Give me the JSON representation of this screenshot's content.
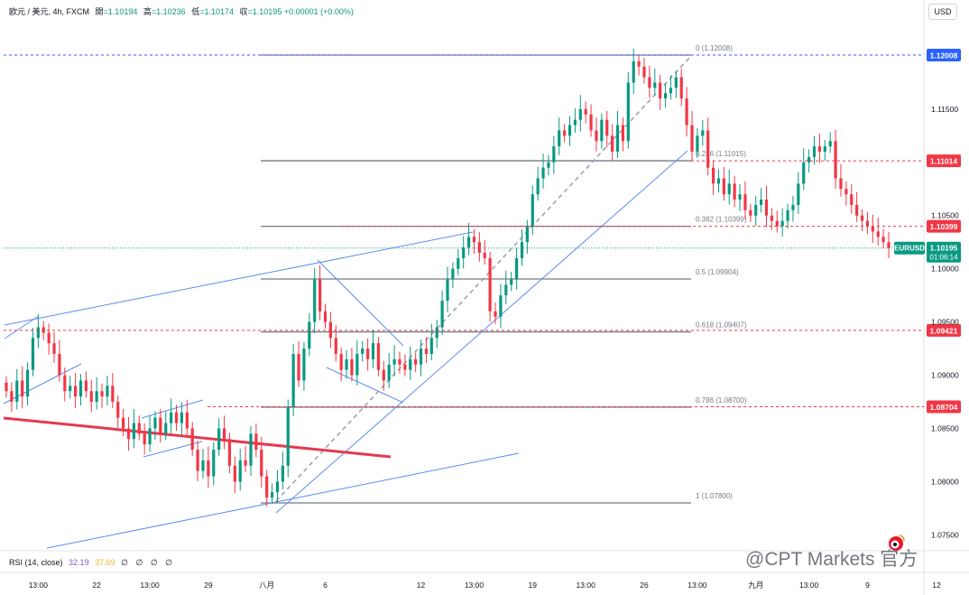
{
  "header": {
    "symbol": "欧元 / 美元, 4h, FXCM",
    "open_label": "開",
    "open": "=1.10194",
    "high_label": "高",
    "high": "=1.10236",
    "low_label": "低",
    "low": "=1.10174",
    "close_label": "収",
    "close": "=1.10195",
    "change": "+0.00001 (+0.00%)"
  },
  "currency_button": "USD",
  "rsi": {
    "label": "RSI (14, close)",
    "value1": "32.19",
    "value2": "37.69",
    "placeholders": "∅ ∅ ∅ ∅"
  },
  "watermark": "@CPT Markets 官方",
  "colors": {
    "up": "#089981",
    "down": "#f23645",
    "trend": "#5b8def",
    "support": "#e53950",
    "fib": "#787b86"
  },
  "chart_data": {
    "type": "candlestick",
    "symbol_tag": "EURUSD",
    "timeframe": "4h",
    "ylim": [
      1.0725,
      1.1245
    ],
    "y_ticks": [
      "1.07500",
      "1.08000",
      "1.08500",
      "1.09000",
      "1.09500",
      "1.10000",
      "1.10500",
      "1.11500"
    ],
    "x_ticks": [
      {
        "label": "13:00",
        "i": 6
      },
      {
        "label": "22",
        "i": 17
      },
      {
        "label": "13:00",
        "i": 27
      },
      {
        "label": "29",
        "i": 38
      },
      {
        "label": "八月",
        "i": 49
      },
      {
        "label": "6",
        "i": 60
      },
      {
        "label": "12",
        "i": 78
      },
      {
        "label": "13:00",
        "i": 88
      },
      {
        "label": "19",
        "i": 99
      },
      {
        "label": "13:00",
        "i": 109
      },
      {
        "label": "26",
        "i": 120
      },
      {
        "label": "13:00",
        "i": 130
      },
      {
        "label": "九月",
        "i": 141
      },
      {
        "label": "13:00",
        "i": 151
      },
      {
        "label": "9",
        "i": 162
      },
      {
        "label": "12",
        "i": 175
      }
    ],
    "price_tags": [
      {
        "label": "1.12008",
        "price": 1.12008,
        "color": "#2962ff"
      },
      {
        "label": "1.11014",
        "price": 1.11014,
        "color": "#f23645"
      },
      {
        "label": "1.10399",
        "price": 1.10399,
        "color": "#f23645"
      },
      {
        "label": "1.09421",
        "price": 1.09421,
        "color": "#f23645"
      },
      {
        "label": "1.08704",
        "price": 1.08704,
        "color": "#f23645"
      }
    ],
    "last_price": {
      "symbol": "EURUSD",
      "value": "1.10195",
      "countdown": "01:06:14",
      "price": 1.10195
    },
    "fib_levels": [
      {
        "ratio": 0,
        "label": "0 (1.12008)",
        "price": 1.12008
      },
      {
        "ratio": 0.236,
        "label": "0.236 (1.11015)",
        "price": 1.11015
      },
      {
        "ratio": 0.382,
        "label": "0.382 (1.10399)",
        "price": 1.10399
      },
      {
        "ratio": 0.5,
        "label": "0.5 (1.09904)",
        "price": 1.09904
      },
      {
        "ratio": 0.618,
        "label": "0.618 (1.09407)",
        "price": 1.09407
      },
      {
        "ratio": 0.786,
        "label": "0.786 (1.08700)",
        "price": 1.087
      },
      {
        "ratio": 1,
        "label": "1 (1.07800)",
        "price": 1.078
      }
    ],
    "closes": [
      1.0885,
      1.0875,
      1.0895,
      1.088,
      1.0905,
      1.0935,
      1.0945,
      1.094,
      1.093,
      1.092,
      1.09,
      1.0885,
      1.089,
      1.088,
      1.0895,
      1.0885,
      1.0875,
      1.0885,
      1.088,
      1.089,
      1.0875,
      1.086,
      1.085,
      1.084,
      1.0855,
      1.0845,
      1.0835,
      1.085,
      1.086,
      1.0845,
      1.0855,
      1.0865,
      1.0855,
      1.0865,
      1.085,
      1.083,
      1.081,
      1.082,
      1.0805,
      1.083,
      1.085,
      1.084,
      1.0815,
      1.08,
      1.082,
      1.0815,
      1.0845,
      1.083,
      1.0805,
      1.0785,
      1.079,
      1.08,
      1.0815,
      1.087,
      1.092,
      1.0895,
      1.0925,
      1.095,
      1.099,
      1.096,
      1.095,
      1.0935,
      1.092,
      1.0905,
      1.0915,
      1.09,
      1.092,
      1.0925,
      1.0915,
      1.093,
      1.0905,
      1.0895,
      1.091,
      1.0915,
      1.091,
      1.0905,
      1.0915,
      1.091,
      1.0925,
      1.092,
      1.0935,
      1.0945,
      1.097,
      1.099,
      1.1,
      1.101,
      1.102,
      1.103,
      1.1025,
      1.1015,
      1.101,
      1.096,
      1.0955,
      1.0975,
      1.0985,
      1.099,
      1.101,
      1.1025,
      1.104,
      1.107,
      1.1085,
      1.1095,
      1.11,
      1.1115,
      1.113,
      1.1125,
      1.1135,
      1.114,
      1.115,
      1.1145,
      1.113,
      1.112,
      1.114,
      1.1125,
      1.111,
      1.1135,
      1.112,
      1.1175,
      1.1195,
      1.119,
      1.118,
      1.117,
      1.1175,
      1.116,
      1.1165,
      1.117,
      1.118,
      1.116,
      1.1135,
      1.111,
      1.1125,
      1.113,
      1.1095,
      1.108,
      1.1085,
      1.107,
      1.108,
      1.1065,
      1.107,
      1.1055,
      1.105,
      1.106,
      1.1065,
      1.105,
      1.1045,
      1.104,
      1.1045,
      1.1055,
      1.106,
      1.108,
      1.11,
      1.1105,
      1.1115,
      1.111,
      1.1115,
      1.112,
      1.1085,
      1.1075,
      1.107,
      1.106,
      1.105,
      1.1045,
      1.104,
      1.1035,
      1.103,
      1.1025,
      1.10195
    ]
  }
}
